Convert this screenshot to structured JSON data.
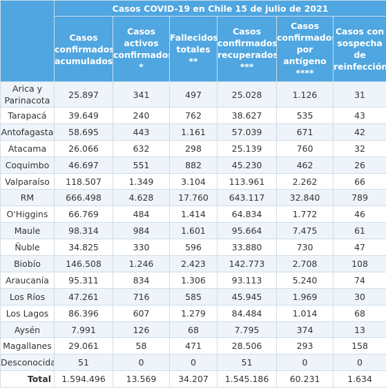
{
  "title": "Casos COVID-19 en Chile 15 de julio de 2021",
  "headers": [
    "Casos\nconfirmados\nacumulados",
    "Casos\nactivos\nconfirmados\n*",
    "Fallecidos\ntotales\n**",
    "Casos\nconfirmados\nrecuperados\n***",
    "Casos\nconfirmados\npor\nantígeno\n****",
    "Casos con\nsospecha\nde\nreinfección"
  ],
  "rows": [
    {
      "region": "Arica y\nParinacota",
      "values": [
        "25.897",
        "341",
        "497",
        "25.028",
        "1.126",
        "31"
      ]
    },
    {
      "region": "Tarapacá",
      "values": [
        "39.649",
        "240",
        "762",
        "38.627",
        "535",
        "43"
      ]
    },
    {
      "region": "Antofagasta",
      "values": [
        "58.695",
        "443",
        "1.161",
        "57.039",
        "671",
        "42"
      ]
    },
    {
      "region": "Atacama",
      "values": [
        "26.066",
        "632",
        "298",
        "25.139",
        "760",
        "32"
      ]
    },
    {
      "region": "Coquimbo",
      "values": [
        "46.697",
        "551",
        "882",
        "45.230",
        "462",
        "26"
      ]
    },
    {
      "region": "Valparaíso",
      "values": [
        "118.507",
        "1.349",
        "3.104",
        "113.961",
        "2.262",
        "66"
      ]
    },
    {
      "region": "RM",
      "values": [
        "666.498",
        "4.628",
        "17.760",
        "643.117",
        "32.840",
        "789"
      ]
    },
    {
      "region": "O'Higgins",
      "values": [
        "66.769",
        "484",
        "1.414",
        "64.834",
        "1.772",
        "46"
      ]
    },
    {
      "region": "Maule",
      "values": [
        "98.314",
        "984",
        "1.601",
        "95.664",
        "7.475",
        "61"
      ]
    },
    {
      "region": "Ñuble",
      "values": [
        "34.825",
        "330",
        "596",
        "33.880",
        "730",
        "47"
      ]
    },
    {
      "region": "Biobío",
      "values": [
        "146.508",
        "1.246",
        "2.423",
        "142.773",
        "2.708",
        "108"
      ]
    },
    {
      "region": "Araucanía",
      "values": [
        "95.311",
        "834",
        "1.306",
        "93.113",
        "5.240",
        "74"
      ]
    },
    {
      "region": "Los Ríos",
      "values": [
        "47.261",
        "716",
        "585",
        "45.945",
        "1.969",
        "30"
      ]
    },
    {
      "region": "Los Lagos",
      "values": [
        "86.396",
        "607",
        "1.279",
        "84.484",
        "1.014",
        "68"
      ]
    },
    {
      "region": "Aysén",
      "values": [
        "7.991",
        "126",
        "68",
        "7.795",
        "374",
        "13"
      ]
    },
    {
      "region": "Magallanes",
      "values": [
        "29.061",
        "58",
        "471",
        "28.506",
        "293",
        "158"
      ]
    },
    {
      "region": "Desconocida",
      "values": [
        "51",
        "0",
        "0",
        "51",
        "0",
        "0"
      ]
    }
  ],
  "total": {
    "label": "Total",
    "values": [
      "1.594.496",
      "13.569",
      "34.207",
      "1.545.186",
      "60.231",
      "1.634"
    ]
  }
}
